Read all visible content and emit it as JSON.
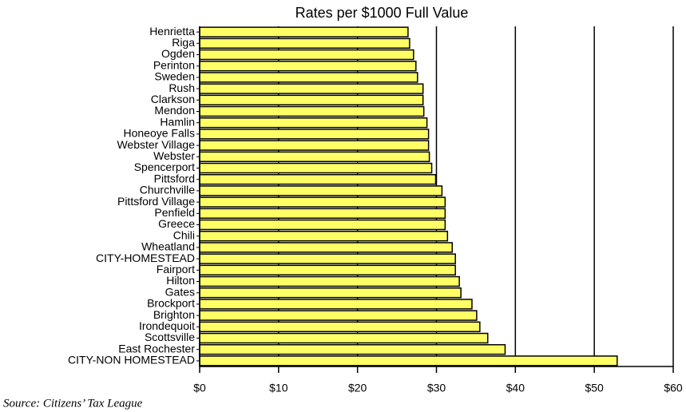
{
  "chart_data": {
    "type": "barh",
    "title": "Rates per $1000 Full Value",
    "categories": [
      "Henrietta",
      "Riga",
      "Ogden",
      "Perinton",
      "Sweden",
      "Rush",
      "Clarkson",
      "Mendon",
      "Hamlin",
      "Honeoye Falls",
      "Webster Village",
      "Webster",
      "Spencerport",
      "Pittsford",
      "Churchville",
      "Pittsford Village",
      "Penfield",
      "Greece",
      "Chili",
      "Wheatland",
      "CITY-HOMESTEAD",
      "Fairport",
      "Hilton",
      "Gates",
      "Brockport",
      "Brighton",
      "Irondequoit",
      "Scottsville",
      "East Rochester",
      "CITY-NON HOMESTEAD"
    ],
    "values": [
      26.4,
      26.6,
      27.1,
      27.4,
      27.6,
      28.3,
      28.3,
      28.4,
      28.8,
      29.0,
      29.0,
      29.1,
      29.4,
      29.9,
      30.7,
      31.1,
      31.1,
      31.1,
      31.4,
      32.0,
      32.4,
      32.4,
      32.9,
      33.1,
      34.5,
      35.1,
      35.5,
      36.5,
      38.7,
      52.9
    ],
    "color": "#ffff66",
    "xlim": [
      0,
      60
    ],
    "xticks": [
      {
        "value": 0,
        "label": "$0"
      },
      {
        "value": 10,
        "label": "$10"
      },
      {
        "value": 20,
        "label": "$20"
      },
      {
        "value": 30,
        "label": "$30"
      },
      {
        "value": 40,
        "label": "$40"
      },
      {
        "value": 50,
        "label": "$50"
      },
      {
        "value": 60,
        "label": "$60"
      }
    ],
    "grid": true,
    "source": "Source: Citizens’ Tax League"
  }
}
